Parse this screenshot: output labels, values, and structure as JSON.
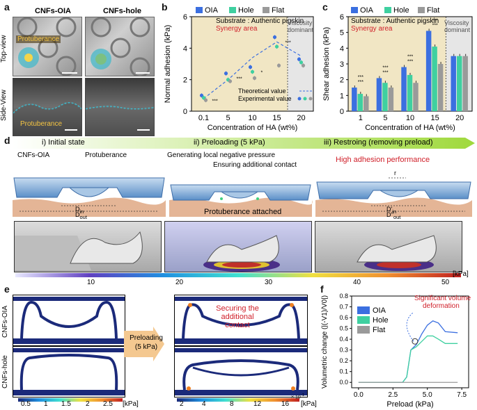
{
  "panel_a": {
    "label": "a",
    "col_oia": "CNFs-OIA",
    "col_hole": "CNFs-hole",
    "row_top": "Top-view",
    "row_side": "Side-View",
    "tag_top": "Protuberance",
    "tag_side": "Protuberance"
  },
  "panel_b": {
    "label": "b",
    "substrate": "Substrate : Authentic pigskin",
    "synergy": "Synergy area",
    "viscosity": [
      "Viscosity",
      "dominant"
    ],
    "legend_theory": "Theoretical value",
    "legend_exp": "Experimental value"
  },
  "panel_c": {
    "label": "c",
    "substrate": "Substrate : Authentic pigskin",
    "synergy": "Synergy area",
    "viscosity": [
      "Viscosity",
      "dominant"
    ],
    "sig": "***"
  },
  "panel_d": {
    "label": "d",
    "step1": "i) Initial state",
    "step2": "ii) Preloading (5 kPa)",
    "step3": "iii) Restroing (removing preload)",
    "cnfs_oia": "CNFs-OIA",
    "protuberance": "Protuberance",
    "gen_pressure": "Generating local negative pressure",
    "ensure_contact": "Ensuring additional contact",
    "high_adhesion": "High adhesion performance",
    "prot_attached": "Protuberance attached",
    "d_in": "D",
    "d_in_sub": "in",
    "d_out": "D",
    "d_out_sub": "out",
    "dp_in": "D'",
    "dp_out": "D''",
    "r": "r",
    "cbar_ticks": [
      "10",
      "20",
      "30",
      "40",
      "50"
    ],
    "cbar_unit": "[kPa]"
  },
  "panel_e": {
    "label": "e",
    "row1": "CNFs-OIA",
    "row2": "CNFs-hole",
    "arrow": [
      "Preloading",
      "(5 kPa)"
    ],
    "securing": [
      "Securing the",
      "additional",
      "contact"
    ],
    "cbar1_ticks": [
      "0.5",
      "1",
      "1.5",
      "2",
      "2.5"
    ],
    "cbar1_unit": "[kPa]",
    "cbar2_ticks": [
      "2",
      "4",
      "8",
      "12",
      "16"
    ],
    "cbar2_exp": "× 10",
    "cbar2_unit": "[kPa]"
  },
  "panel_f": {
    "label": "f",
    "annotation": [
      "Significant volume",
      "deformation"
    ]
  },
  "colors": {
    "oia": "#3b6fe0",
    "hole": "#3fd0a0",
    "flat": "#9a9a9a",
    "synergy_bg": "#f1e6c4",
    "viscosity_bg": "#e6e6e6",
    "red": "#d0202a"
  },
  "chart_data": [
    {
      "id": "b",
      "type": "scatter",
      "xlabel": "Concentration of HA (wt%)",
      "ylabel": "Normal adhesion (kPa)",
      "categories": [
        "0.1",
        "5",
        "10",
        "15",
        "20"
      ],
      "ylim": [
        0,
        6
      ],
      "yticks": [
        0,
        2,
        4,
        6
      ],
      "legend": [
        "OIA",
        "Hole",
        "Flat"
      ],
      "series": [
        {
          "name": "OIA",
          "values": [
            1.0,
            2.4,
            2.8,
            4.7,
            3.3
          ]
        },
        {
          "name": "Hole",
          "values": [
            0.85,
            2.0,
            2.5,
            4.1,
            3.1
          ]
        },
        {
          "name": "Flat",
          "values": [
            0.7,
            1.9,
            2.1,
            2.9,
            2.9
          ]
        }
      ],
      "theoretical": [
        0.8,
        2.0,
        3.4,
        4.4,
        3.5
      ],
      "significance": [
        "***",
        "***",
        "*",
        "***",
        "***"
      ]
    },
    {
      "id": "c",
      "type": "bar",
      "xlabel": "Concentration of HA (wt%)",
      "ylabel": "Shear adhesion (kPa)",
      "categories": [
        "1",
        "5",
        "10",
        "15",
        "20"
      ],
      "ylim": [
        0,
        6
      ],
      "yticks": [
        0,
        1,
        2,
        3,
        4,
        5,
        6
      ],
      "legend": [
        "OIA",
        "Hole",
        "Flat"
      ],
      "series": [
        {
          "name": "OIA",
          "values": [
            1.5,
            2.1,
            2.8,
            5.1,
            3.5
          ]
        },
        {
          "name": "Hole",
          "values": [
            1.1,
            1.8,
            2.3,
            4.1,
            3.5
          ]
        },
        {
          "name": "Flat",
          "values": [
            0.95,
            1.5,
            1.8,
            3.0,
            3.5
          ]
        }
      ]
    },
    {
      "id": "f",
      "type": "line",
      "xlabel": "Preload (kPa)",
      "ylabel": "Volumetric change (|(-V1)/V0|)",
      "xlim": [
        -0.5,
        8
      ],
      "xticks": [
        0.0,
        2.5,
        5.0,
        7.5
      ],
      "ylim": [
        -0.05,
        0.8
      ],
      "yticks": [
        0.0,
        0.1,
        0.2,
        0.3,
        0.4,
        0.5,
        0.6,
        0.7,
        0.8
      ],
      "legend": [
        "OIA",
        "Hole",
        "Flat"
      ],
      "series": [
        {
          "name": "OIA",
          "x": [
            0,
            3.2,
            3.5,
            3.8,
            4.2,
            4.6,
            5.0,
            5.4,
            5.8,
            6.3,
            7.2
          ],
          "y": [
            0,
            0,
            0.05,
            0.3,
            0.35,
            0.45,
            0.53,
            0.57,
            0.55,
            0.47,
            0.46
          ]
        },
        {
          "name": "Hole",
          "x": [
            0,
            3.2,
            3.5,
            3.8,
            4.2,
            4.6,
            5.0,
            5.4,
            5.8,
            6.3,
            7.2
          ],
          "y": [
            0,
            0,
            0.05,
            0.3,
            0.33,
            0.38,
            0.43,
            0.43,
            0.4,
            0.36,
            0.36
          ]
        },
        {
          "name": "Flat",
          "x": [
            0,
            7.2
          ],
          "y": [
            0,
            0
          ]
        }
      ]
    }
  ]
}
